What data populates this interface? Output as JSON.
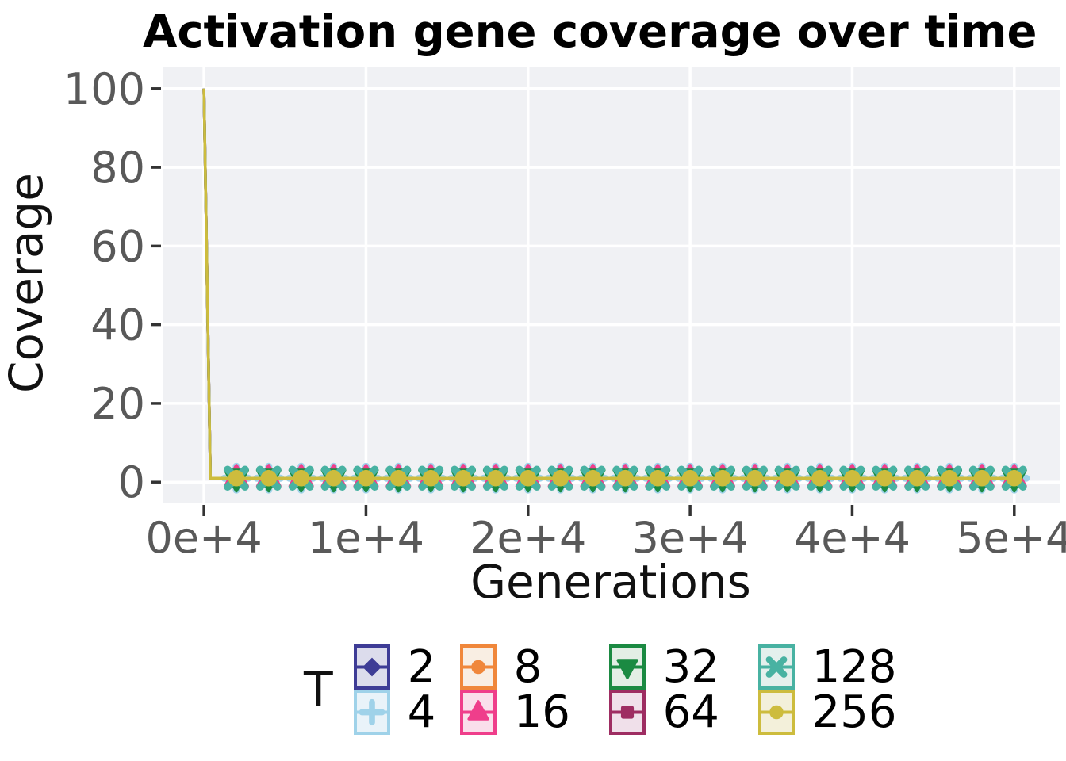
{
  "title": "Activation gene coverage over time",
  "chart_data": {
    "type": "line",
    "title": "Activation gene coverage over time",
    "xlabel": "Generations",
    "ylabel": "Coverage",
    "xlim": [
      -2550,
      52800
    ],
    "ylim": [
      -5.4,
      105.4
    ],
    "grid": "white major gridlines on light gray panel",
    "panel_color": "#F0F1F4",
    "gridline_color": "#ffffff",
    "tick_color": "#333333",
    "tick_label_color": "#595959",
    "x_ticks": {
      "values": [
        0,
        10000,
        20000,
        30000,
        40000,
        50000
      ],
      "labels": [
        "0e+4",
        "1e+4",
        "2e+4",
        "3e+4",
        "4e+4",
        "5e+4"
      ]
    },
    "y_ticks": {
      "values": [
        0,
        20,
        40,
        60,
        80,
        100
      ],
      "labels": [
        "0",
        "20",
        "40",
        "60",
        "80",
        "100"
      ]
    },
    "x": [
      0,
      400,
      2000,
      4000,
      6000,
      8000,
      10000,
      12000,
      14000,
      16000,
      18000,
      20000,
      22000,
      24000,
      26000,
      28000,
      30000,
      32000,
      34000,
      36000,
      38000,
      40000,
      42000,
      44000,
      46000,
      48000,
      50000
    ],
    "y_common": [
      100,
      1,
      1,
      1,
      1,
      1,
      1,
      1,
      1,
      1,
      1,
      1,
      1,
      1,
      1,
      1,
      1,
      1,
      1,
      1,
      1,
      1,
      1,
      1,
      1,
      1,
      1
    ],
    "marker_x": [
      2000,
      4000,
      6000,
      8000,
      10000,
      12000,
      14000,
      16000,
      18000,
      20000,
      22000,
      24000,
      26000,
      28000,
      30000,
      32000,
      34000,
      36000,
      38000,
      40000,
      42000,
      44000,
      46000,
      48000,
      50000
    ],
    "marker_y": 1,
    "legend_title": "T",
    "legend_position": "bottom",
    "series": [
      {
        "name": "2",
        "marker": "diamond",
        "color": "#3E3C96",
        "tint": "#DCDCEC"
      },
      {
        "name": "4",
        "marker": "plus",
        "color": "#9FD2E9",
        "tint": "#E9F3F9"
      },
      {
        "name": "8",
        "marker": "circle",
        "color": "#F0873B",
        "tint": "#F9EEE3"
      },
      {
        "name": "16",
        "marker": "triangle-up",
        "color": "#EF3E8B",
        "tint": "#FADFEB"
      },
      {
        "name": "32",
        "marker": "triangle-down",
        "color": "#1B8A42",
        "tint": "#E3EEE5"
      },
      {
        "name": "64",
        "marker": "square",
        "color": "#9E2D62",
        "tint": "#F0E0EA"
      },
      {
        "name": "128",
        "marker": "x",
        "color": "#48B2A2",
        "tint": "#E4F0ED"
      },
      {
        "name": "256",
        "marker": "circle",
        "color": "#CDBC3D",
        "tint": "#F3F0DA"
      }
    ]
  },
  "layout_note": "all series overlap: coverage 100 at generation 0, ~1 thereafter"
}
